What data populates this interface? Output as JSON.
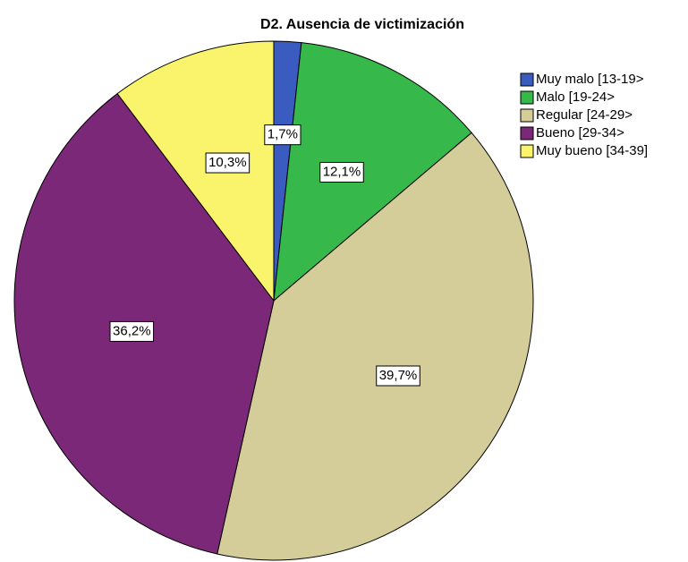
{
  "chart_data": {
    "type": "pie",
    "title": "D2. Ausencia de victimización",
    "categories": [
      "Muy malo [13-19>",
      "Malo [19-24>",
      "Regular [24-29>",
      "Bueno [29-34>",
      "Muy bueno [34-39]"
    ],
    "values": [
      1.7,
      12.1,
      39.7,
      36.2,
      10.3
    ],
    "value_labels": [
      "1,7%",
      "12,1%",
      "39,7%",
      "36,2%",
      "10,3%"
    ],
    "colors": [
      "#3a5bbf",
      "#36b84a",
      "#d5cd99",
      "#7b2878",
      "#faf36c"
    ],
    "legend": "right"
  }
}
